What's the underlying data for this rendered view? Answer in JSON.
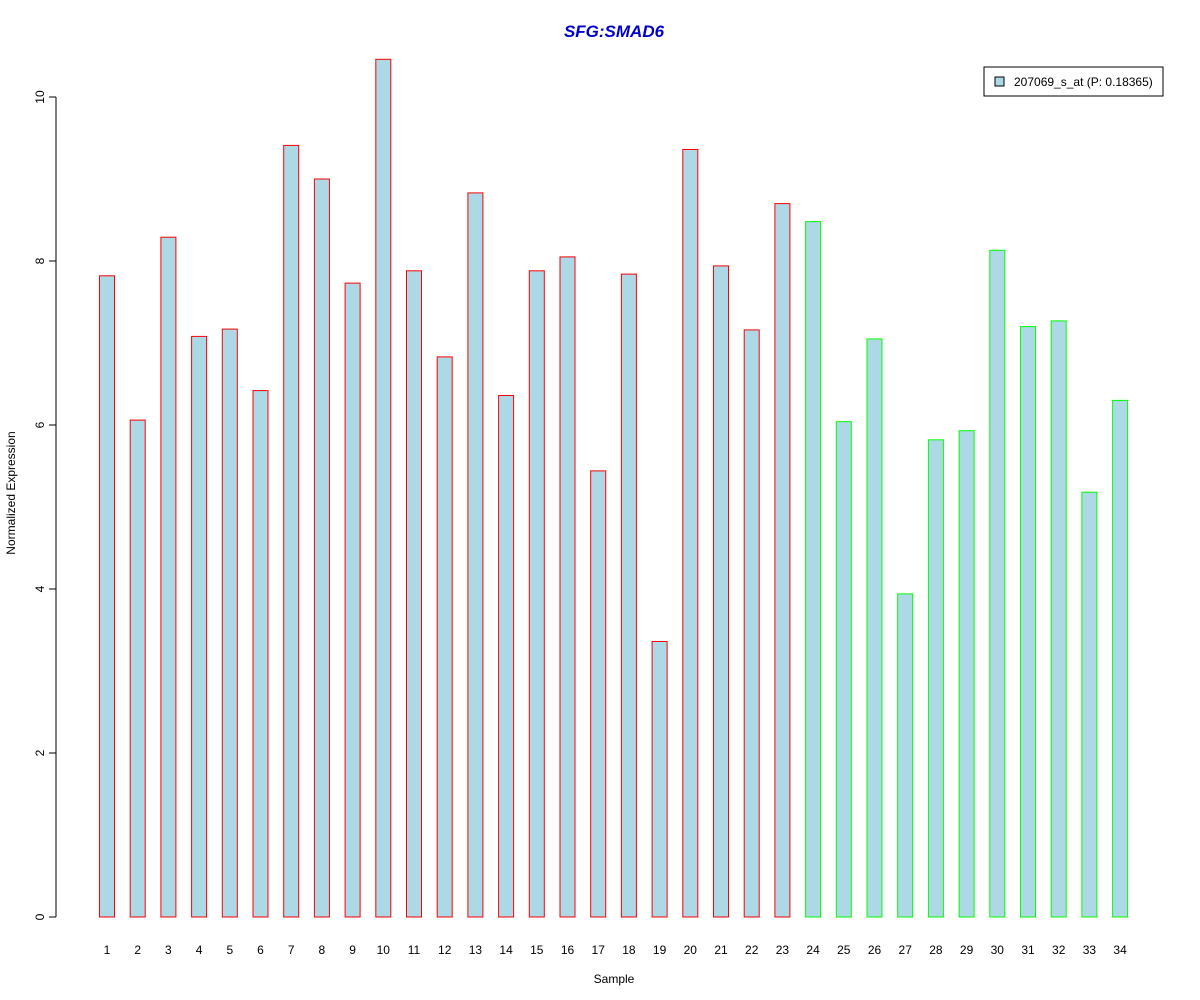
{
  "chart_data": {
    "type": "bar",
    "title": "SFG:SMAD6",
    "xlabel": "Sample",
    "ylabel": "Normalized Expression",
    "ylim": [
      0,
      10.5
    ],
    "yticks": [
      0,
      2,
      4,
      6,
      8,
      10
    ],
    "grid": false,
    "legend": {
      "position": "top-right",
      "entries": [
        "207069_s_at (P: 0.18365)"
      ]
    },
    "categories": [
      "1",
      "2",
      "3",
      "4",
      "5",
      "6",
      "7",
      "8",
      "9",
      "10",
      "11",
      "12",
      "13",
      "14",
      "15",
      "16",
      "17",
      "18",
      "19",
      "20",
      "21",
      "22",
      "23",
      "24",
      "25",
      "26",
      "27",
      "28",
      "29",
      "30",
      "31",
      "32",
      "33",
      "34"
    ],
    "series": [
      {
        "name": "207069_s_at (P: 0.18365)",
        "values": [
          7.82,
          6.06,
          8.29,
          7.08,
          7.17,
          6.42,
          9.41,
          9.0,
          7.73,
          10.46,
          7.88,
          6.83,
          8.83,
          6.36,
          7.88,
          8.05,
          5.44,
          7.84,
          3.36,
          9.36,
          7.94,
          7.16,
          8.7,
          8.48,
          6.04,
          7.05,
          3.94,
          5.82,
          5.93,
          8.13,
          7.2,
          7.27,
          5.18,
          6.3
        ],
        "groups": [
          "red",
          "red",
          "red",
          "red",
          "red",
          "red",
          "red",
          "red",
          "red",
          "red",
          "red",
          "red",
          "red",
          "red",
          "red",
          "red",
          "red",
          "red",
          "red",
          "red",
          "red",
          "red",
          "red",
          "green",
          "green",
          "green",
          "green",
          "green",
          "green",
          "green",
          "green",
          "green",
          "green",
          "green"
        ]
      }
    ],
    "colors": {
      "bar_fill": "#add8e6",
      "border_red": "#ff0000",
      "border_green": "#00ff00",
      "title": "#0000cc",
      "axis": "#000000"
    }
  }
}
